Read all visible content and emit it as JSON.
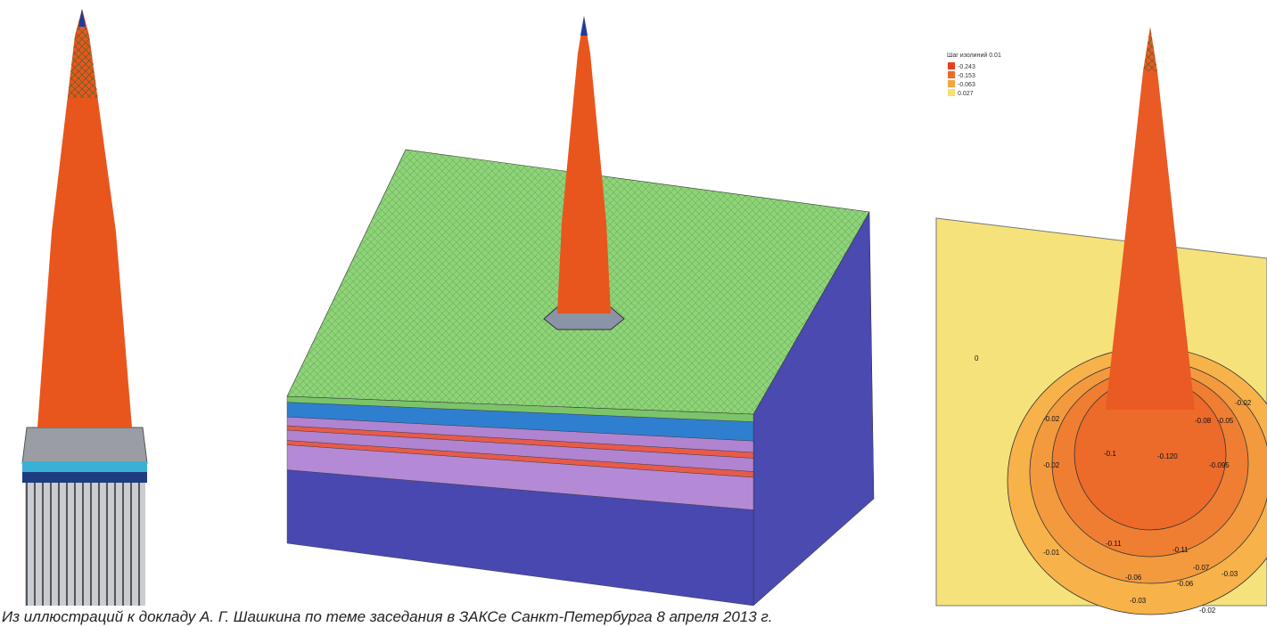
{
  "caption": "Из иллюстраций к докладу А. Г. Шашкина по теме заседания в ЗАКСе Санкт-Петербурга 8 апреля 2013 г.",
  "legend": {
    "title": "Шаг изолиний 0.01",
    "items": [
      "-0.243",
      "-0.153",
      "-0.063",
      "0.027"
    ]
  },
  "contour_labels": [
    "0",
    "-0.02",
    "-0.08",
    "-0.05",
    "-0.02",
    "-0.1",
    "-0.120",
    "-0.095",
    "-0.02",
    "-0.11",
    "-0.11",
    "-0.07",
    "-0.01",
    "-0.06",
    "-0.06",
    "-0.03",
    "-0.03",
    "-0.02"
  ]
}
